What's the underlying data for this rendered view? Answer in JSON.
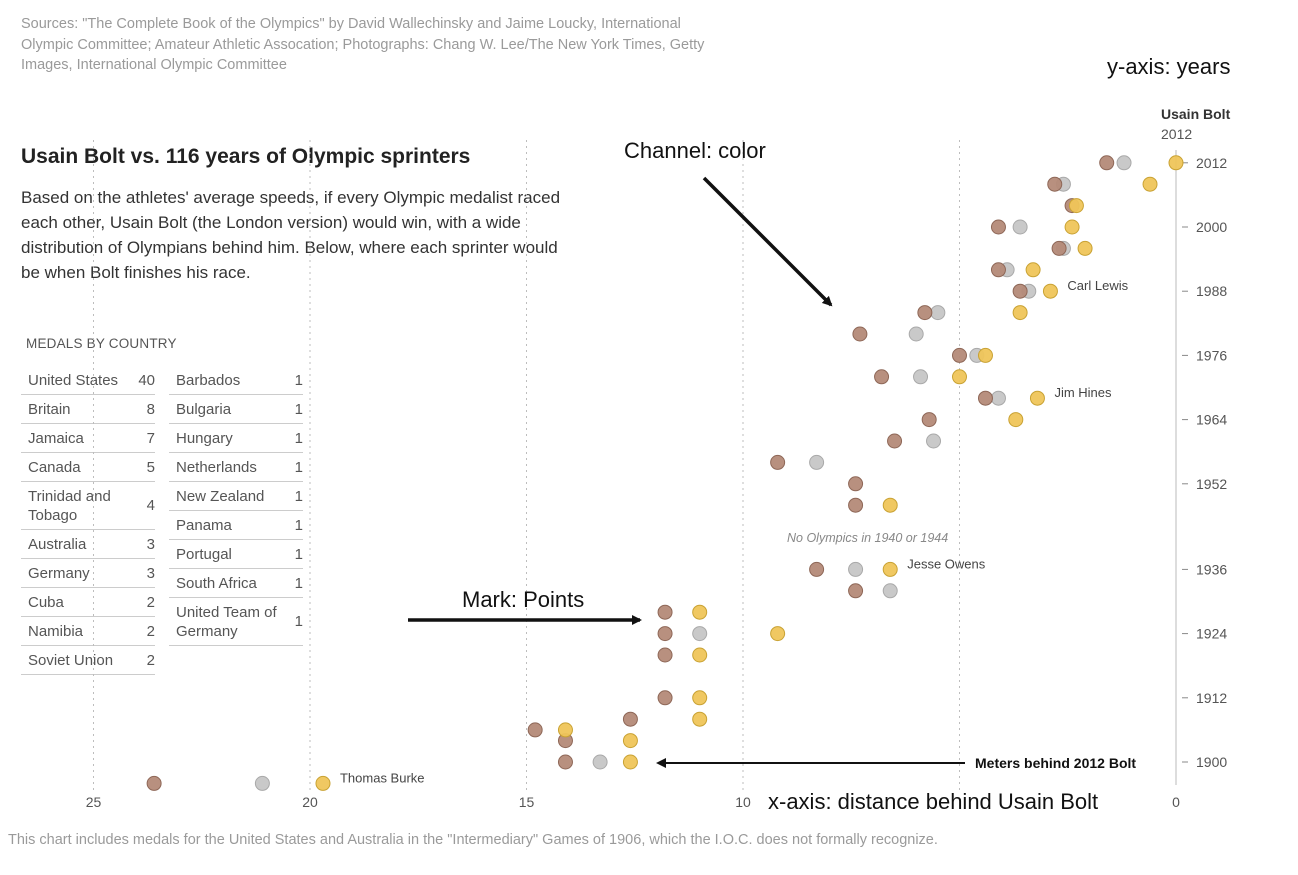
{
  "sources": "Sources: \"The Complete Book of the Olympics\" by David Wallechinsky and Jaime Loucky, International Olympic Committee; Amateur Athletic Assocation; Photographs: Chang W. Lee/The New York Times, Getty Images, International Olympic Committee",
  "title": "Usain Bolt vs. 116 years of Olympic sprinters",
  "description": "Based on the athletes' average speeds, if every Olympic medalist raced each other, Usain Bolt (the London version) would win, with a wide distribution of Olympians behind him. Below, where each sprinter would be when Bolt finishes his race.",
  "medals": {
    "heading": "MEDALS BY COUNTRY",
    "left": [
      {
        "country": "United States",
        "count": "40"
      },
      {
        "country": "Britain",
        "count": "8"
      },
      {
        "country": "Jamaica",
        "count": "7"
      },
      {
        "country": "Canada",
        "count": "5"
      },
      {
        "country": "Trinidad and Tobago",
        "count": "4"
      },
      {
        "country": "Australia",
        "count": "3"
      },
      {
        "country": "Germany",
        "count": "3"
      },
      {
        "country": "Cuba",
        "count": "2"
      },
      {
        "country": "Namibia",
        "count": "2"
      },
      {
        "country": "Soviet Union",
        "count": "2"
      }
    ],
    "right": [
      {
        "country": "Barbados",
        "count": "1"
      },
      {
        "country": "Bulgaria",
        "count": "1"
      },
      {
        "country": "Hungary",
        "count": "1"
      },
      {
        "country": "Netherlands",
        "count": "1"
      },
      {
        "country": "New Zealand",
        "count": "1"
      },
      {
        "country": "Panama",
        "count": "1"
      },
      {
        "country": "Portugal",
        "count": "1"
      },
      {
        "country": "South Africa",
        "count": "1"
      },
      {
        "country": "United Team of Germany",
        "count": "1"
      }
    ]
  },
  "footnote": "This chart includes medals for the United States and Australia in the \"Intermediary\" Games of 1906, which the I.O.C. does not formally recognize.",
  "annotations": {
    "channel": "Channel: color",
    "mark": "Mark: Points",
    "yaxis": "y-axis: years",
    "xaxis": "x-axis: distance behind Usain Bolt",
    "meters_behind": "Meters behind 2012 Bolt",
    "bolt_name": "Usain Bolt",
    "bolt_year": "2012",
    "no_olympics": "No Olympics in 1940 or 1944"
  },
  "colors": {
    "gold": "#efc55a",
    "silver": "#c6c6c6",
    "bronze": "#b48a78",
    "gold_stroke": "#c9a233",
    "silver_stroke": "#a9a9a9",
    "bronze_stroke": "#8e6757"
  },
  "chart_data": {
    "type": "scatter",
    "title": "Usain Bolt vs. 116 years of Olympic sprinters",
    "xlabel": "Meters behind 2012 Bolt",
    "ylabel": "Year",
    "x_reversed": true,
    "xlim": [
      0,
      25
    ],
    "x_ticks": [
      25,
      20,
      15,
      10,
      0
    ],
    "x_gridlines": [
      25,
      20,
      15,
      10,
      5
    ],
    "ylim": [
      1896,
      2012
    ],
    "y_ticks": [
      1900,
      1912,
      1924,
      1936,
      1952,
      1964,
      1976,
      1988,
      2000,
      2012
    ],
    "series": [
      {
        "name": "gold",
        "points": [
          {
            "year": 2012,
            "x": 0.0
          },
          {
            "year": 2008,
            "x": 0.6
          },
          {
            "year": 2004,
            "x": 2.3
          },
          {
            "year": 2000,
            "x": 2.4
          },
          {
            "year": 1996,
            "x": 2.1
          },
          {
            "year": 1992,
            "x": 3.3
          },
          {
            "year": 1988,
            "x": 2.9
          },
          {
            "year": 1984,
            "x": 3.6
          },
          {
            "year": 1976,
            "x": 4.4
          },
          {
            "year": 1972,
            "x": 5.0
          },
          {
            "year": 1968,
            "x": 3.2
          },
          {
            "year": 1964,
            "x": 3.7
          },
          {
            "year": 1948,
            "x": 6.6
          },
          {
            "year": 1936,
            "x": 6.6
          },
          {
            "year": 1928,
            "x": 11.0
          },
          {
            "year": 1924,
            "x": 9.2
          },
          {
            "year": 1920,
            "x": 11.0
          },
          {
            "year": 1912,
            "x": 11.0
          },
          {
            "year": 1908,
            "x": 11.0
          },
          {
            "year": 1906,
            "x": 14.1
          },
          {
            "year": 1904,
            "x": 12.6
          },
          {
            "year": 1900,
            "x": 12.6
          },
          {
            "year": 1896,
            "x": 19.7
          }
        ]
      },
      {
        "name": "silver",
        "points": [
          {
            "year": 2012,
            "x": 1.2
          },
          {
            "year": 2008,
            "x": 2.6
          },
          {
            "year": 2000,
            "x": 3.6
          },
          {
            "year": 1996,
            "x": 2.6
          },
          {
            "year": 1992,
            "x": 3.9
          },
          {
            "year": 1988,
            "x": 3.4
          },
          {
            "year": 1984,
            "x": 5.5
          },
          {
            "year": 1980,
            "x": 6.0
          },
          {
            "year": 1976,
            "x": 4.6
          },
          {
            "year": 1972,
            "x": 5.9
          },
          {
            "year": 1968,
            "x": 4.1
          },
          {
            "year": 1960,
            "x": 5.6
          },
          {
            "year": 1956,
            "x": 8.3
          },
          {
            "year": 1936,
            "x": 7.4
          },
          {
            "year": 1932,
            "x": 6.6
          },
          {
            "year": 1924,
            "x": 11.0
          },
          {
            "year": 1900,
            "x": 13.3
          },
          {
            "year": 1896,
            "x": 21.1
          }
        ]
      },
      {
        "name": "bronze",
        "points": [
          {
            "year": 2012,
            "x": 1.6
          },
          {
            "year": 2008,
            "x": 2.8
          },
          {
            "year": 2004,
            "x": 2.4
          },
          {
            "year": 2000,
            "x": 4.1
          },
          {
            "year": 1996,
            "x": 2.7
          },
          {
            "year": 1992,
            "x": 4.1
          },
          {
            "year": 1988,
            "x": 3.6
          },
          {
            "year": 1984,
            "x": 5.8
          },
          {
            "year": 1980,
            "x": 7.3
          },
          {
            "year": 1976,
            "x": 5.0
          },
          {
            "year": 1972,
            "x": 6.8
          },
          {
            "year": 1968,
            "x": 4.4
          },
          {
            "year": 1964,
            "x": 5.7
          },
          {
            "year": 1960,
            "x": 6.5
          },
          {
            "year": 1956,
            "x": 9.2
          },
          {
            "year": 1952,
            "x": 7.4
          },
          {
            "year": 1948,
            "x": 7.4
          },
          {
            "year": 1936,
            "x": 8.3
          },
          {
            "year": 1932,
            "x": 7.4
          },
          {
            "year": 1928,
            "x": 11.8
          },
          {
            "year": 1924,
            "x": 11.8
          },
          {
            "year": 1920,
            "x": 11.8
          },
          {
            "year": 1912,
            "x": 11.8
          },
          {
            "year": 1908,
            "x": 12.6
          },
          {
            "year": 1906,
            "x": 14.8
          },
          {
            "year": 1904,
            "x": 14.1
          },
          {
            "year": 1900,
            "x": 14.1
          },
          {
            "year": 1896,
            "x": 23.6
          }
        ]
      }
    ],
    "labels": [
      {
        "text": "Carl Lewis",
        "year": 1988,
        "x": 2.9
      },
      {
        "text": "Jim Hines",
        "year": 1968,
        "x": 3.2
      },
      {
        "text": "Jesse Owens",
        "year": 1936,
        "x": 6.6
      },
      {
        "text": "Thomas Burke",
        "year": 1896,
        "x": 19.7
      }
    ]
  }
}
